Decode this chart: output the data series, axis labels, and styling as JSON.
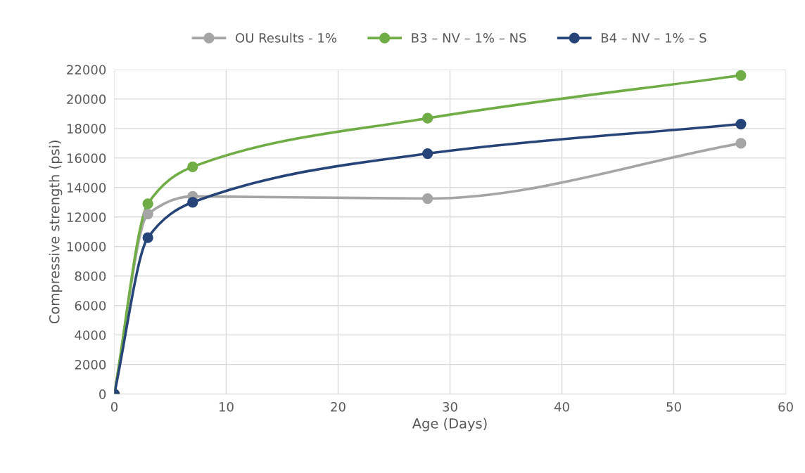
{
  "chart_data": {
    "type": "line",
    "xlabel": "Age (Days)",
    "ylabel": "Compressive strength (psi)",
    "x": [
      0,
      3,
      7,
      28,
      56
    ],
    "series": [
      {
        "name": "OU Results - 1%",
        "color": "#a5a5a5",
        "values": [
          0,
          12200,
          13400,
          13250,
          17000
        ]
      },
      {
        "name": "B3 – NV – 1% – NS",
        "color": "#70ad47",
        "values": [
          0,
          12900,
          15400,
          18700,
          21600
        ]
      },
      {
        "name": "B4 – NV – 1% – S",
        "color": "#264478",
        "values": [
          0,
          10600,
          13000,
          16300,
          18300
        ]
      }
    ],
    "xlim": [
      0,
      60
    ],
    "xticks": [
      0,
      10,
      20,
      30,
      40,
      50,
      60
    ],
    "ylim": [
      0,
      22000
    ],
    "yticks": [
      0,
      2000,
      4000,
      6000,
      8000,
      10000,
      12000,
      14000,
      16000,
      18000,
      20000,
      22000
    ],
    "grid": true,
    "legend": "top",
    "marker": "circle",
    "line_style": "solid"
  }
}
